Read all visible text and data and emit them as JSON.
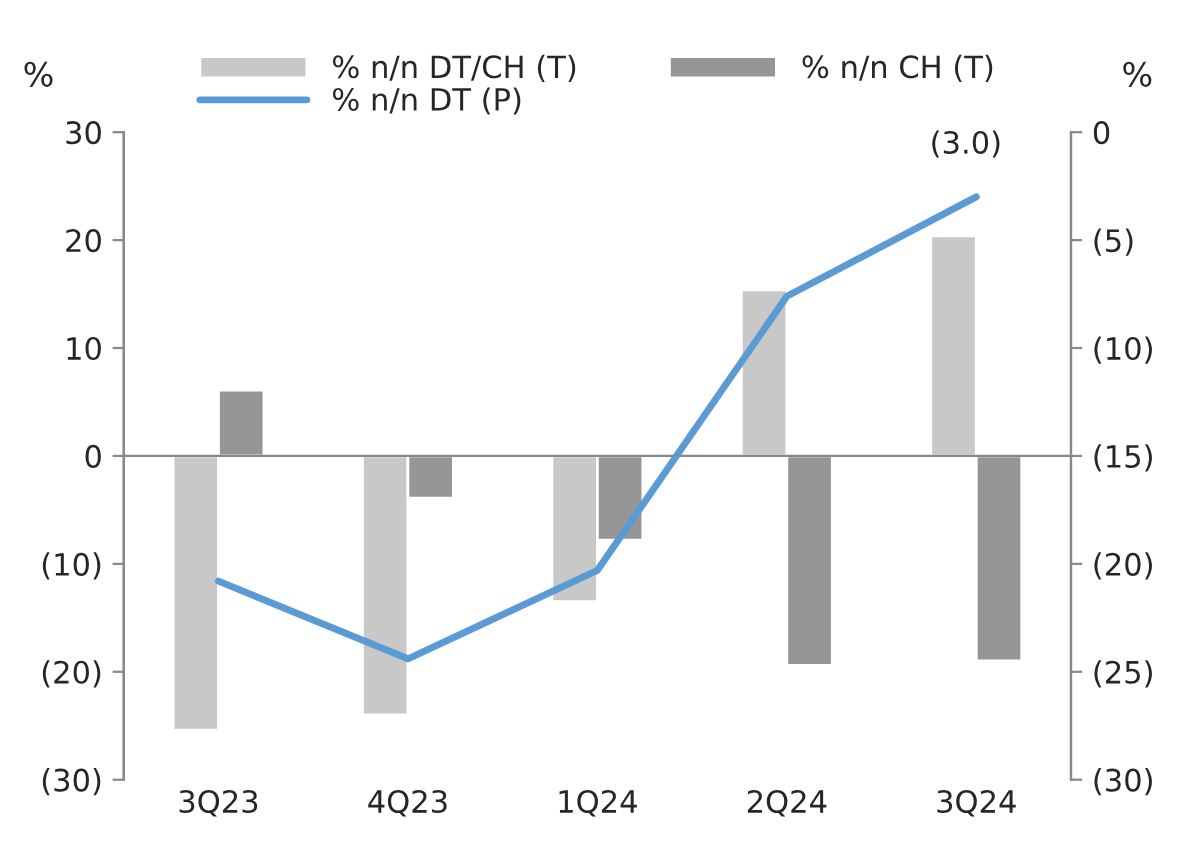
{
  "chart_data": {
    "type": "bar",
    "categories": [
      "3Q23",
      "4Q23",
      "1Q24",
      "2Q24",
      "3Q24"
    ],
    "series": [
      {
        "name": "% n/n DT/CH (T)",
        "type": "bar",
        "color": "#c8c8c8",
        "values": [
          -25.4,
          -24.0,
          -13.5,
          15.4,
          20.4
        ]
      },
      {
        "name": "% n/n CH (T)",
        "type": "bar",
        "color": "#969696",
        "values": [
          6.1,
          -3.9,
          -7.8,
          -19.4,
          -19.0
        ]
      },
      {
        "name": "% n/n DT (P)",
        "type": "line",
        "axis": "y2",
        "color": "#5b9bd5",
        "values": [
          -20.8,
          -24.4,
          -20.3,
          -7.6,
          -3.0
        ]
      }
    ],
    "ylabel": "%",
    "y2label": "%",
    "ylim": [
      -30,
      30
    ],
    "yticks": [
      {
        "value": -30,
        "label": "(30)"
      },
      {
        "value": -20,
        "label": "(20)"
      },
      {
        "value": -10,
        "label": "(10)"
      },
      0,
      10,
      20,
      30
    ],
    "y2lim": [
      -30,
      0
    ],
    "y2ticks": [
      {
        "value": -30,
        "label": "(30)"
      },
      {
        "value": -25,
        "label": "(25)"
      },
      {
        "value": -20,
        "label": "(20)"
      },
      {
        "value": -15,
        "label": "(15)"
      },
      {
        "value": -10,
        "label": "(10)"
      },
      {
        "value": -5,
        "label": "(5)"
      },
      0
    ],
    "annotations": [
      "(3.0)"
    ],
    "legend": "top",
    "line_style": "solid",
    "marker": "none"
  }
}
